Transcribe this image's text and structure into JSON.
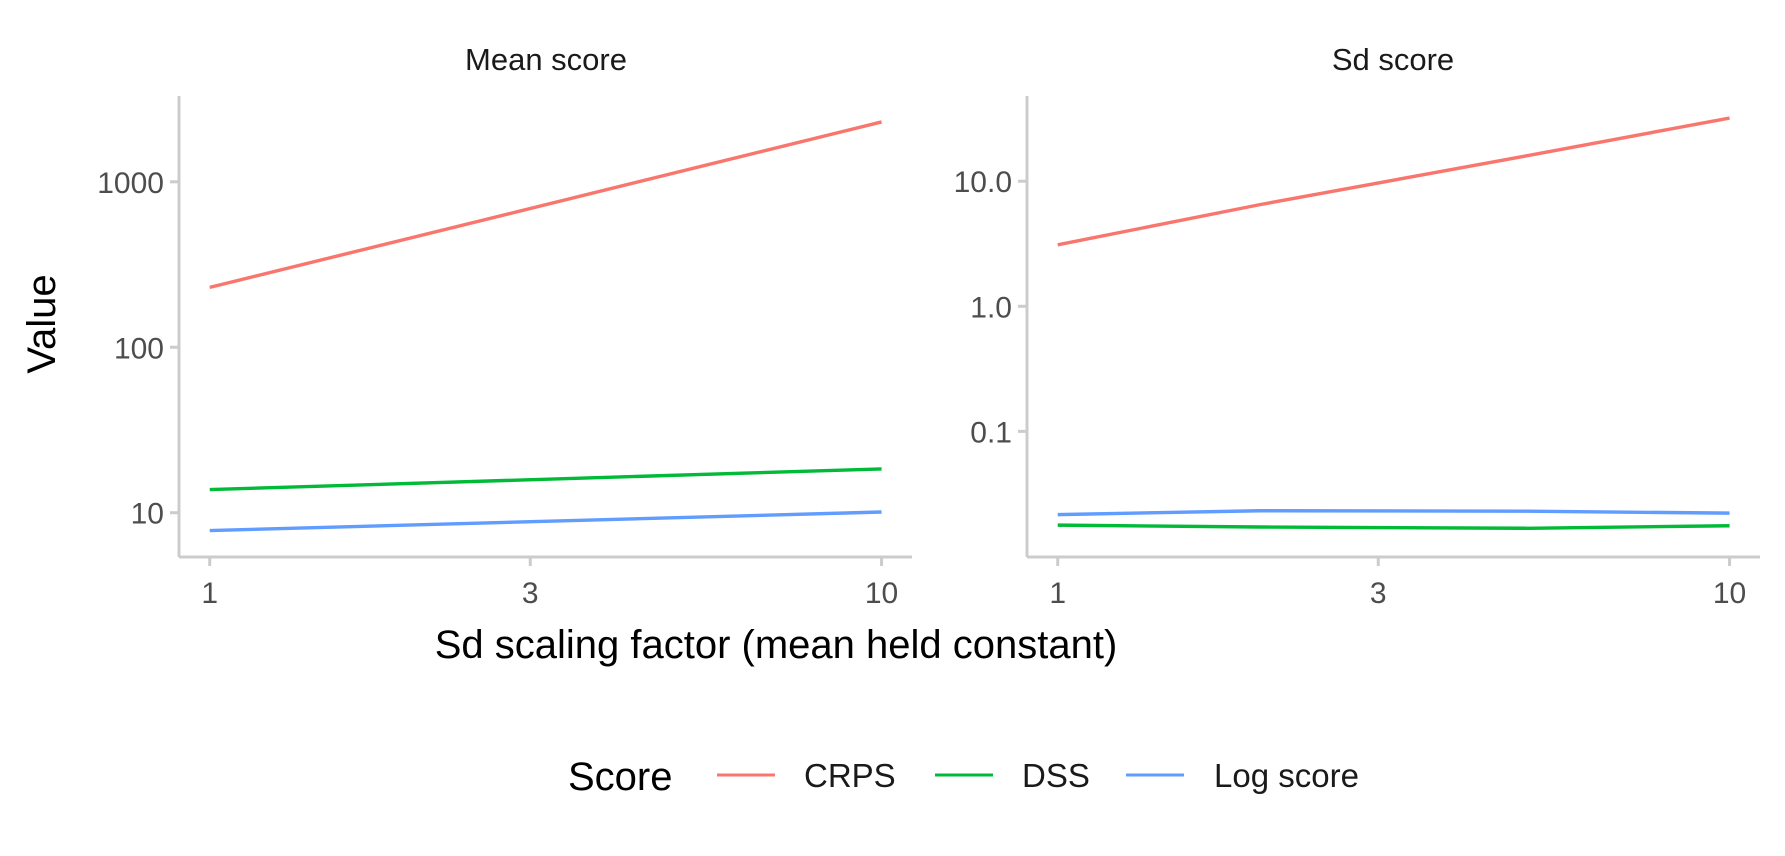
{
  "colors": {
    "CRPS": "#F8766D",
    "DSS": "#00BA38",
    "Log score": "#619CFF",
    "axis": "#cccccc",
    "text": "#4d4d4d"
  },
  "chart_data": [
    {
      "type": "line",
      "title": "Mean score",
      "xscale": "log",
      "yscale": "log",
      "xlim": [
        0.9,
        11.1
      ],
      "ylim": [
        5.4,
        3300
      ],
      "xticks": [
        1,
        3,
        10
      ],
      "xtick_labels": [
        "1",
        "3",
        "10"
      ],
      "yticks": [
        10,
        100,
        1000
      ],
      "ytick_labels": [
        "10",
        "100",
        "1000"
      ],
      "series": [
        {
          "name": "CRPS",
          "x": [
            1,
            10
          ],
          "y": [
            230,
            2300
          ]
        },
        {
          "name": "DSS",
          "x": [
            1,
            10
          ],
          "y": [
            13.8,
            18.4
          ]
        },
        {
          "name": "Log score",
          "x": [
            1,
            10
          ],
          "y": [
            7.8,
            10.1
          ]
        }
      ]
    },
    {
      "type": "line",
      "title": "Sd score",
      "xscale": "log",
      "yscale": "log",
      "xlim": [
        0.9,
        11.1
      ],
      "ylim": [
        0.0099,
        48
      ],
      "xticks": [
        1,
        3,
        10
      ],
      "xtick_labels": [
        "1",
        "3",
        "10"
      ],
      "yticks": [
        0.1,
        1,
        10
      ],
      "ytick_labels": [
        "0.1",
        "1.0",
        "10.0"
      ],
      "series": [
        {
          "name": "CRPS",
          "x": [
            1,
            2,
            5,
            10
          ],
          "y": [
            3.1,
            6.5,
            16,
            32
          ]
        },
        {
          "name": "DSS",
          "x": [
            1,
            2,
            5,
            10
          ],
          "y": [
            0.0178,
            0.0172,
            0.0168,
            0.0176
          ]
        },
        {
          "name": "Log score",
          "x": [
            1,
            2,
            5,
            10
          ],
          "y": [
            0.0216,
            0.0232,
            0.023,
            0.0222
          ]
        }
      ]
    }
  ],
  "xlabel": "Sd scaling factor (mean held constant)",
  "ylabel": "Value",
  "legend": {
    "title": "Score",
    "position": "bottom",
    "items": [
      "CRPS",
      "DSS",
      "Log score"
    ]
  }
}
